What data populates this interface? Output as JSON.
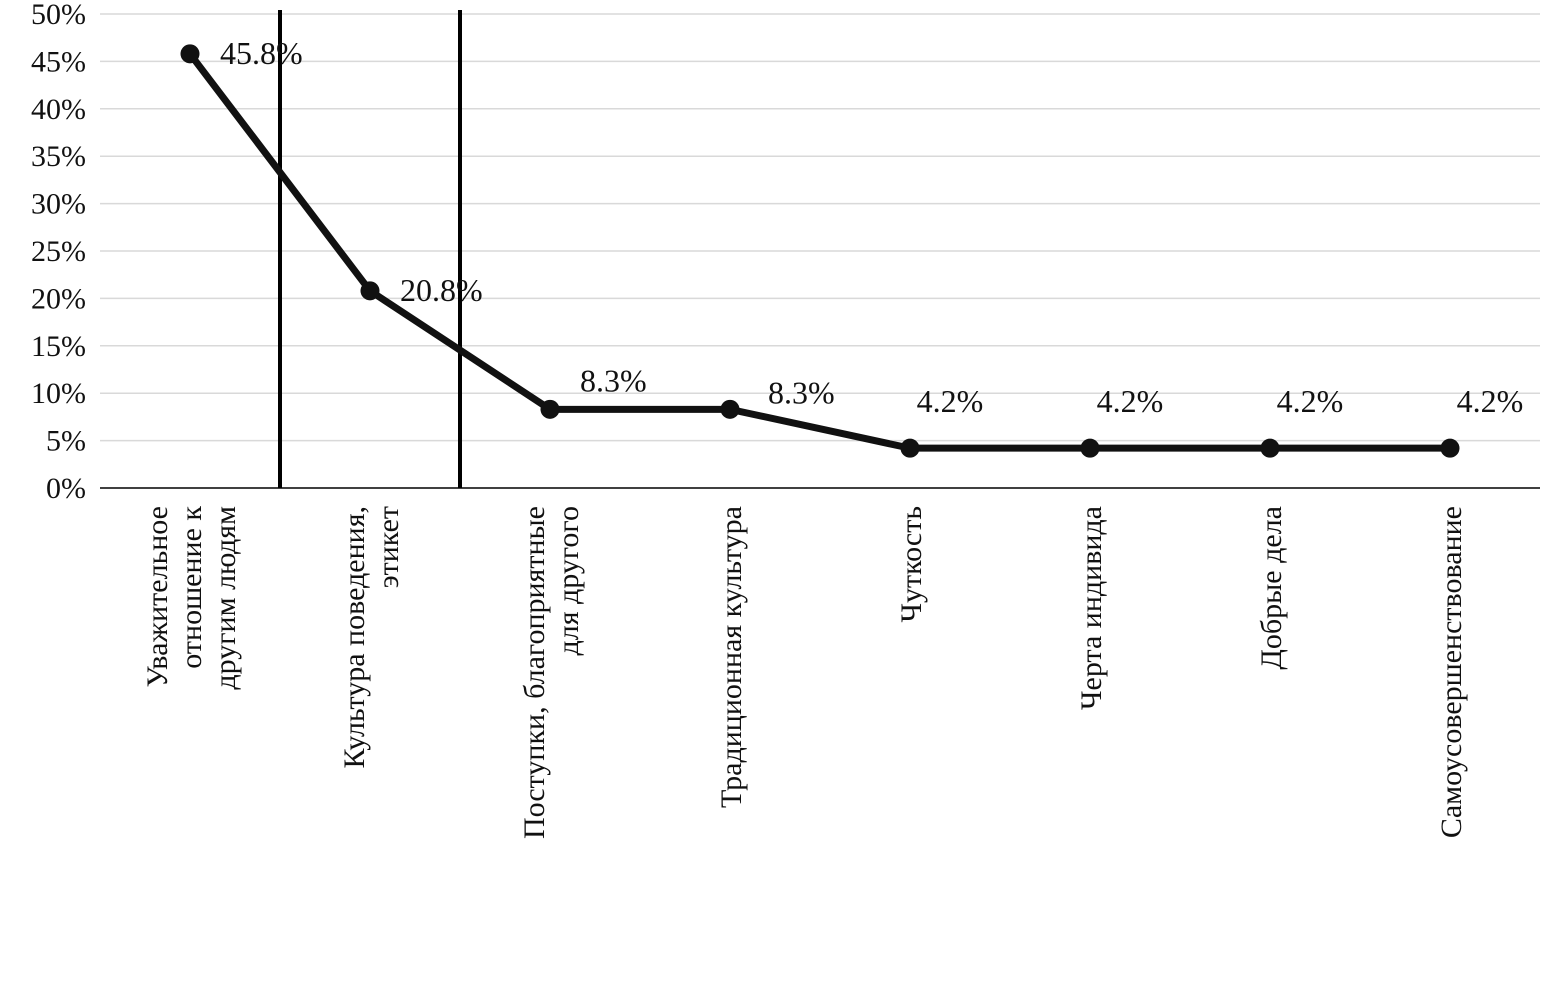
{
  "chart_data": {
    "type": "line",
    "title": "",
    "categories": [
      {
        "label": "Уважительное отношение к другим людям",
        "lines": [
          "Уважительное",
          "отношение к",
          "другим людям"
        ]
      },
      {
        "label": "Культура поведения, этикет",
        "lines": [
          "Культура поведения,",
          "этикет"
        ]
      },
      {
        "label": "Поступки, благоприятные для другого",
        "lines": [
          "Поступки, благоприятные",
          "для другого"
        ]
      },
      {
        "label": "Традиционная культура",
        "lines": [
          "Традиционная культура"
        ]
      },
      {
        "label": "Чуткость",
        "lines": [
          "Чуткость"
        ]
      },
      {
        "label": "Черта индивида",
        "lines": [
          "Черта индивида"
        ]
      },
      {
        "label": "Добрые дела",
        "lines": [
          "Добрые дела"
        ]
      },
      {
        "label": "Самоусовершенствование",
        "lines": [
          "Самоусовершенствование"
        ]
      }
    ],
    "series": [
      {
        "name": "",
        "values": [
          45.8,
          20.8,
          8.3,
          8.3,
          4.2,
          4.2,
          4.2,
          4.2
        ]
      }
    ],
    "point_labels": [
      "45.8%",
      "20.8%",
      "8.3%",
      "8.3%",
      "4.2%",
      "4.2%",
      "4.2%",
      "4.2%"
    ],
    "ylim": [
      0,
      50
    ],
    "y_tick_step": 5,
    "y_tick_labels": [
      "0%",
      "5%",
      "10%",
      "15%",
      "20%",
      "25%",
      "30%",
      "35%",
      "40%",
      "45%",
      "50%"
    ],
    "grid": true,
    "legend": "none",
    "vertical_separators_after_category": [
      0,
      1
    ],
    "colors": {
      "series": "#111111",
      "marker": "#111111",
      "grid": "#d9d9d9",
      "axis": "#404040",
      "separator": "#000000",
      "text": "#111111"
    }
  }
}
